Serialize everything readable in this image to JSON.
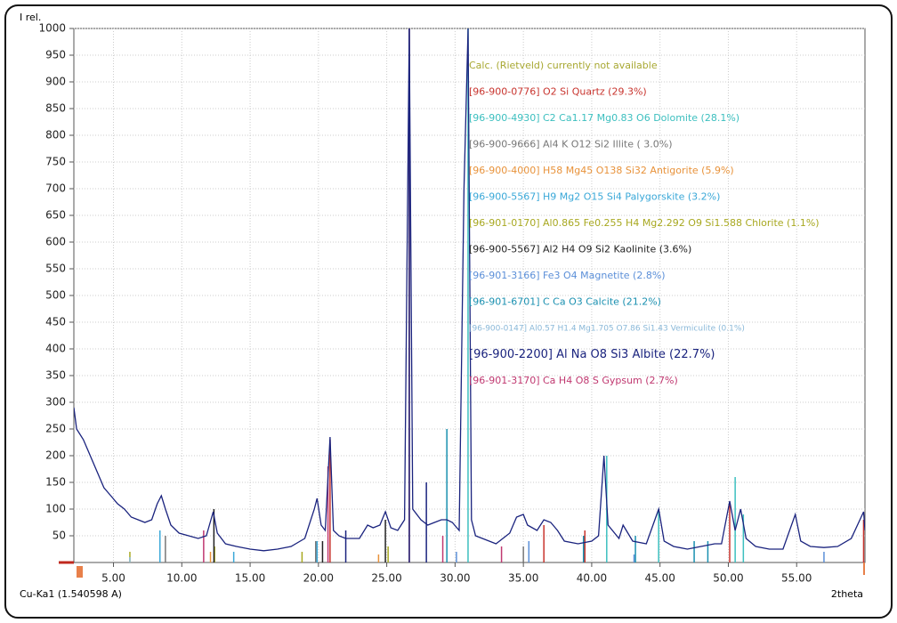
{
  "chart_data": {
    "type": "line",
    "y_label": "I rel.",
    "x_label": "2theta",
    "radiation": "Cu-Ka1 (1.540598 A)",
    "annotation": {
      "text": "Calc. (Rietveld) currently not available",
      "color": "#a8a832"
    },
    "xlim": [
      2.1,
      60
    ],
    "ylim": [
      0,
      1000
    ],
    "xticks": [
      {
        "value": 5,
        "label": "5.00"
      },
      {
        "value": 10,
        "label": "10.00"
      },
      {
        "value": 15,
        "label": "15.00"
      },
      {
        "value": 20,
        "label": "20.00"
      },
      {
        "value": 25,
        "label": "25.00"
      },
      {
        "value": 30,
        "label": "30.00"
      },
      {
        "value": 35,
        "label": "35.00"
      },
      {
        "value": 40,
        "label": "40.00"
      },
      {
        "value": 45,
        "label": "45.00"
      },
      {
        "value": 50,
        "label": "50.00"
      },
      {
        "value": 55,
        "label": "55.00"
      }
    ],
    "yticks": [
      50,
      100,
      150,
      200,
      250,
      300,
      350,
      400,
      450,
      500,
      550,
      600,
      650,
      700,
      750,
      800,
      850,
      900,
      950,
      1000
    ],
    "grid": true,
    "series": [
      {
        "color": "#1a237e",
        "x": [
          2.1,
          2.3,
          2.8,
          3.3,
          3.8,
          4.3,
          4.8,
          5.3,
          5.8,
          6.3,
          6.8,
          7.3,
          7.8,
          8.2,
          8.5,
          8.8,
          9.2,
          9.8,
          10.5,
          11.2,
          11.8,
          12.3,
          12.6,
          13.2,
          14,
          15,
          16,
          17,
          18,
          19,
          19.7,
          19.9,
          20.2,
          20.5,
          20.85,
          21.1,
          21.5,
          22,
          23,
          23.6,
          24,
          24.5,
          24.9,
          25.3,
          25.8,
          26.3,
          26.65,
          26.9,
          27.5,
          28,
          28.5,
          29,
          29.4,
          29.8,
          30.3,
          30.65,
          30.95,
          31.2,
          31.5,
          32,
          33,
          34,
          34.5,
          35,
          35.3,
          36,
          36.5,
          37,
          37.5,
          38,
          39,
          40,
          40.5,
          40.9,
          41.2,
          42,
          42.3,
          43,
          44,
          44.9,
          45.3,
          46,
          47,
          48,
          49,
          49.5,
          50.1,
          50.5,
          50.9,
          51.3,
          52,
          53,
          54,
          54.9,
          55.3,
          56,
          57,
          58,
          59,
          59.9,
          60
        ],
        "values": [
          290,
          250,
          230,
          200,
          170,
          140,
          125,
          110,
          100,
          85,
          80,
          75,
          80,
          110,
          125,
          100,
          70,
          55,
          50,
          45,
          50,
          95,
          55,
          35,
          30,
          25,
          22,
          25,
          30,
          45,
          100,
          120,
          70,
          60,
          235,
          60,
          50,
          45,
          45,
          70,
          65,
          70,
          95,
          65,
          60,
          80,
          1000,
          100,
          80,
          70,
          75,
          80,
          80,
          75,
          60,
          700,
          1000,
          80,
          50,
          45,
          35,
          55,
          85,
          90,
          70,
          60,
          80,
          75,
          60,
          40,
          35,
          40,
          50,
          200,
          70,
          45,
          70,
          40,
          35,
          100,
          40,
          30,
          25,
          30,
          35,
          35,
          115,
          60,
          100,
          45,
          30,
          25,
          25,
          90,
          40,
          30,
          28,
          30,
          45,
          95,
          60
        ]
      }
    ],
    "phases": [
      {
        "name": "[96-900-0776] O2 Si  Quartz (29.3%)",
        "color": "#c8342e",
        "x": [
          20.85,
          26.65,
          36.5,
          39.5,
          50.1,
          59.9
        ],
        "values": [
          230,
          1000,
          70,
          60,
          110,
          80
        ]
      },
      {
        "name": "[96-900-4930] C2 Ca1.17 Mg0.83 O6  Dolomite (28.1%)",
        "color": "#3cbfbf",
        "x": [
          30.95,
          41.1,
          44.9,
          50.5,
          51.1
        ],
        "values": [
          1000,
          200,
          100,
          160,
          90
        ]
      },
      {
        "name": "[96-900-9666] Al4 K O12 Si2  Illite (  3.0%)",
        "color": "#777777",
        "x": [
          8.8,
          19.8,
          35
        ],
        "values": [
          50,
          40,
          30
        ]
      },
      {
        "name": "[96-900-4000] H58 Mg45 O138 Si32  Antigorite (5.9%)",
        "color": "#e8923a",
        "x": [
          12.1,
          24.4
        ],
        "values": [
          20,
          15
        ]
      },
      {
        "name": "[96-900-5567] H9 Mg2 O15 Si4  Palygorskite (3.2%)",
        "color": "#3aa8d8",
        "x": [
          8.4,
          13.8,
          19.9
        ],
        "values": [
          60,
          20,
          40
        ]
      },
      {
        "name": "[96-901-0170] Al0.865 Fe0.255 H4 Mg2.292 O9 Si1.588  Chlorite (1.1%)",
        "color": "#a8a820",
        "x": [
          6.2,
          12.4,
          18.8,
          25.1
        ],
        "values": [
          20,
          30,
          20,
          30
        ]
      },
      {
        "name": "[96-900-5567] Al2 H4 O9 Si2 Kaolinite (3.6%)",
        "color": "#222222",
        "x": [
          12.35,
          20.3,
          24.9
        ],
        "values": [
          100,
          40,
          80
        ]
      },
      {
        "name": "[96-901-3166] Fe3 O4 Magnetite (2.8%)",
        "color": "#5b8fd8",
        "x": [
          30.1,
          35.4,
          43.1,
          57
        ],
        "values": [
          20,
          40,
          15,
          20
        ]
      },
      {
        "name": "[96-901-6701] C Ca O3 Calcite (21.2%)",
        "color": "#1a90b0",
        "x": [
          29.4,
          39.4,
          43.2,
          47.5,
          48.5
        ],
        "values": [
          250,
          50,
          50,
          40,
          40
        ]
      },
      {
        "name": "[96-900-0147] Al0.57 H1.4 Mg1.705 O7.86 Si1.43 Vermiculite (0.1%)",
        "color": "#8ab8d8",
        "x": [
          6.2
        ],
        "values": [
          10
        ]
      },
      {
        "name": "[96-900-2200] Al Na O8 Si3 Albite (22.7%)",
        "color": "#1a237e",
        "x": [
          22,
          26.65,
          27.9
        ],
        "values": [
          60,
          1000,
          150
        ]
      },
      {
        "name": "[96-901-3170] Ca H4 O8 S Gypsum (2.7%)",
        "color": "#c03870",
        "x": [
          11.6,
          20.7,
          29.1,
          33.4
        ],
        "values": [
          60,
          180,
          50,
          30
        ]
      }
    ]
  }
}
